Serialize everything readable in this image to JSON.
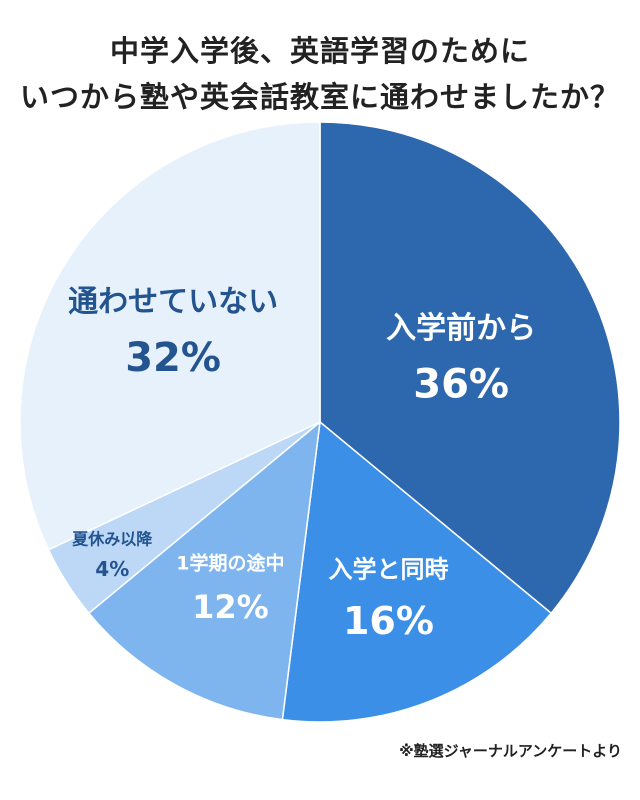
{
  "title": {
    "line1": "中学入学後、英語学習のために",
    "line2": "いつから塾や英会話教室に通わせましたか？"
  },
  "source": "※塾選ジャーナルアンケートより",
  "chart_data": {
    "type": "pie",
    "start_angle_deg": 0,
    "direction": "clockwise",
    "slices": [
      {
        "label": "入学前から",
        "value": 36,
        "value_label": "36%",
        "color": "#2d67ad",
        "text_color": "#ffffff"
      },
      {
        "label": "入学と同時",
        "value": 16,
        "value_label": "16%",
        "color": "#3c8fe6",
        "text_color": "#ffffff"
      },
      {
        "label": "1学期の途中",
        "value": 12,
        "value_label": "12%",
        "color": "#7fb5ef",
        "text_color": "#ffffff"
      },
      {
        "label": "夏休み以降",
        "value": 4,
        "value_label": "4%",
        "color": "#bcd8f6",
        "text_color": "#23548f"
      },
      {
        "label": "通わせていない",
        "value": 32,
        "value_label": "32%",
        "color": "#e6f1fc",
        "text_color": "#23548f"
      }
    ]
  }
}
